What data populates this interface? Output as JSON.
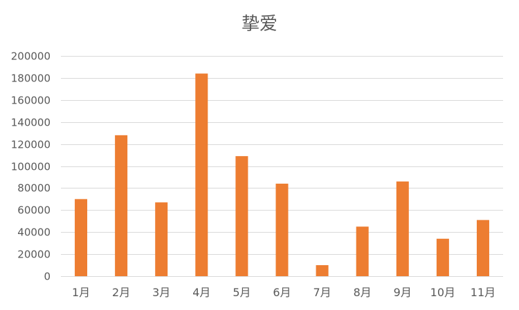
{
  "chart_data": {
    "type": "bar",
    "title": "挚爱",
    "categories": [
      "1月",
      "2月",
      "3月",
      "4月",
      "5月",
      "6月",
      "7月",
      "8月",
      "9月",
      "10月",
      "11月"
    ],
    "series": [
      {
        "values": [
          70000,
          128000,
          67000,
          184000,
          109000,
          84000,
          10000,
          45000,
          86000,
          34000,
          51000
        ]
      }
    ],
    "ylim": [
      0,
      200000
    ],
    "yticks": [
      0,
      20000,
      40000,
      60000,
      80000,
      100000,
      120000,
      140000,
      160000,
      180000,
      200000
    ],
    "grid": true,
    "legend": "none",
    "bar_color": "#ED7D31",
    "grid_color": "#D9D9D9",
    "text_color": "#595959"
  }
}
